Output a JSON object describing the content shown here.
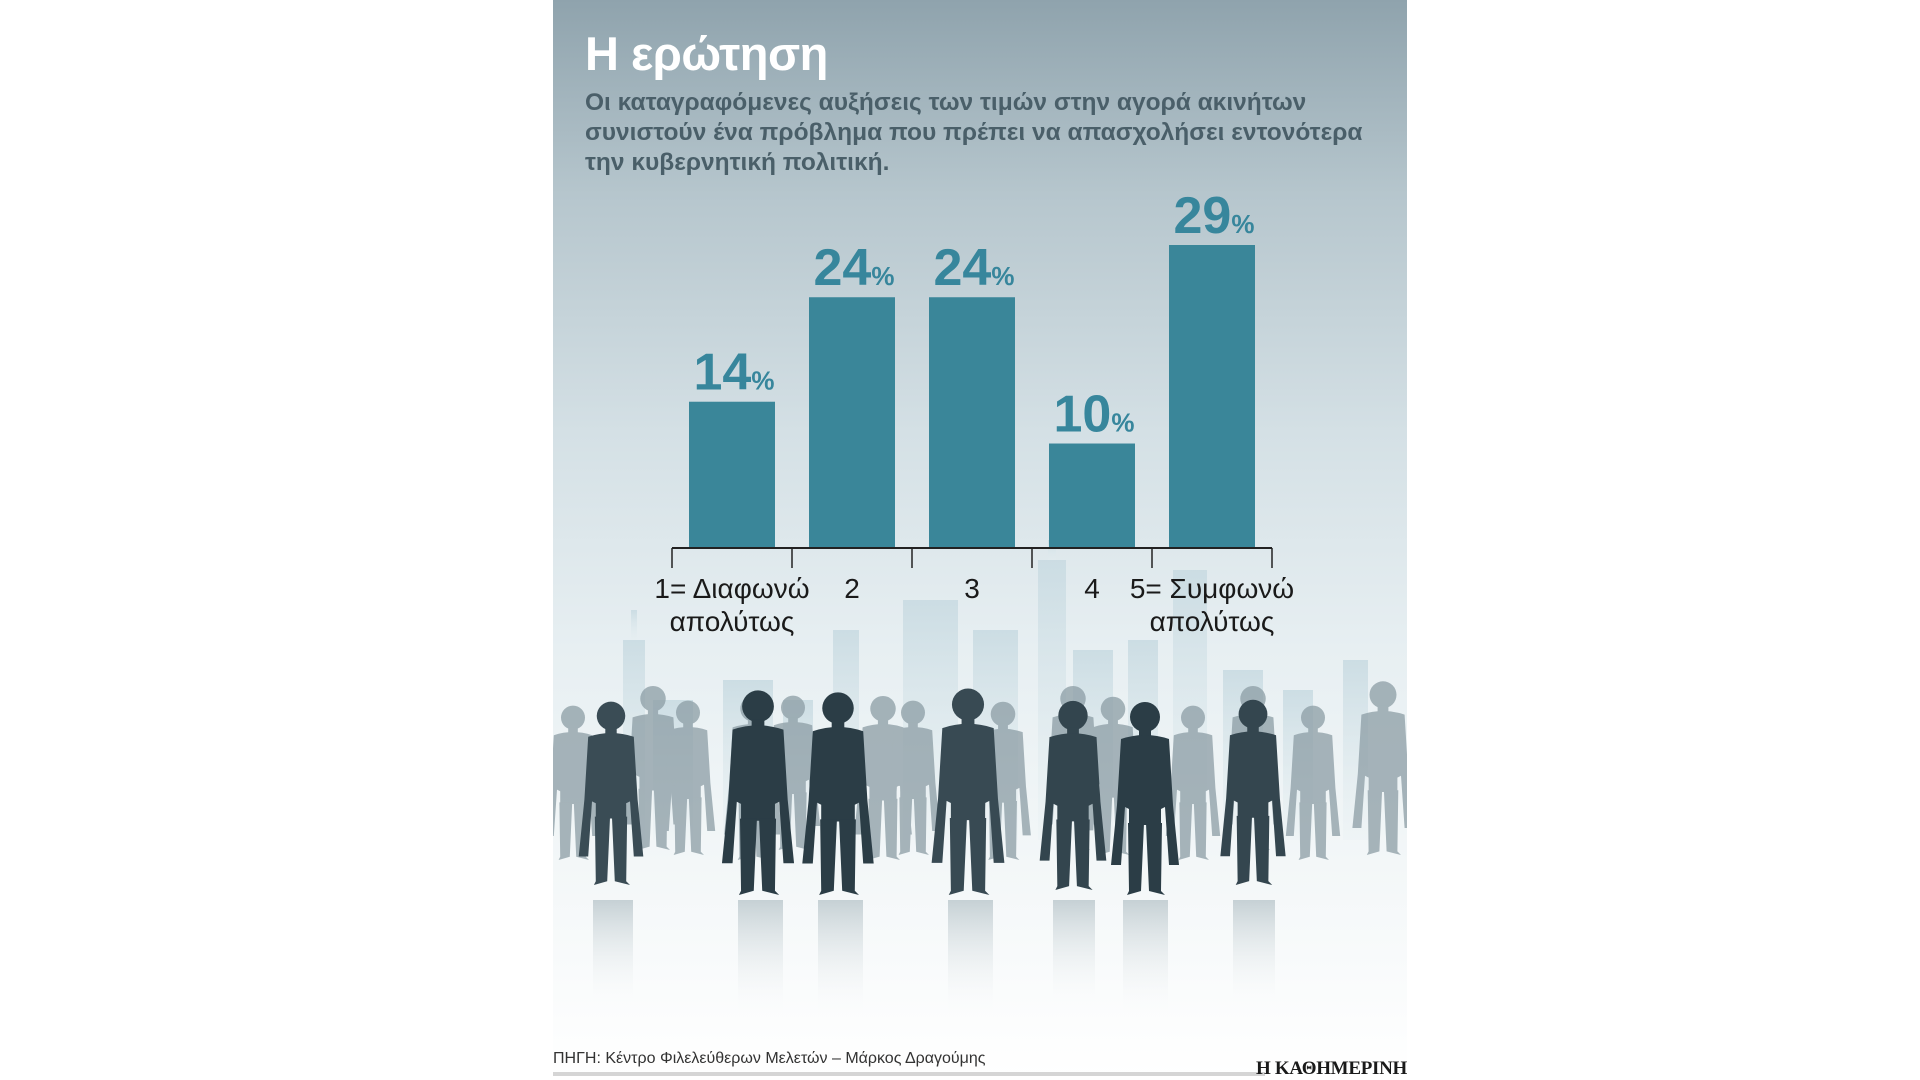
{
  "title": "Η ερώτηση",
  "question": "Οι καταγραφόμενες αυξήσεις των τιμών στην αγορά ακινήτων συνιστούν ένα πρόβλημα που πρέπει να απασχολήσει εντονότερα την κυβερνητική πολιτική.",
  "source": "ΠΗΓΗ: Κέντρο Φιλελεύθερων Μελετών – Μάρκος Δραγούμης",
  "logo": "Η ΚΑΘΗΜΕΡΙΝΗ",
  "colors": {
    "bar": "#3a8699",
    "value_label": "#37869c",
    "silhouette_dark": "#2b3d46",
    "silhouette_light": "#8c9da5"
  },
  "chart_data": {
    "type": "bar",
    "categories": [
      "1= Διαφωνώ απολύτως",
      "2",
      "3",
      "4",
      "5= Συμφωνώ απολύτως"
    ],
    "category_lines": [
      [
        "1= Διαφωνώ",
        "απολύτως"
      ],
      [
        "2"
      ],
      [
        "3"
      ],
      [
        "4"
      ],
      [
        "5= Συμφωνώ",
        "απολύτως"
      ]
    ],
    "values": [
      14,
      24,
      24,
      10,
      29
    ],
    "value_suffix": "%",
    "title": "",
    "xlabel": "",
    "ylabel": "",
    "ylim": [
      0,
      29
    ]
  }
}
